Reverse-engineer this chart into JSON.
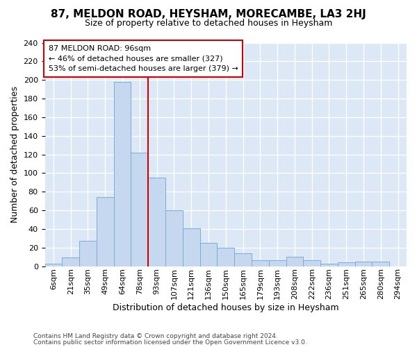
{
  "title": "87, MELDON ROAD, HEYSHAM, MORECAMBE, LA3 2HJ",
  "subtitle": "Size of property relative to detached houses in Heysham",
  "xlabel": "Distribution of detached houses by size in Heysham",
  "ylabel": "Number of detached properties",
  "footer1": "Contains HM Land Registry data © Crown copyright and database right 2024.",
  "footer2": "Contains public sector information licensed under the Open Government Licence v3.0.",
  "annotation_line1": "87 MELDON ROAD: 96sqm",
  "annotation_line2": "← 46% of detached houses are smaller (327)",
  "annotation_line3": "53% of semi-detached houses are larger (379) →",
  "bar_color": "#c5d8f0",
  "bar_edge_color": "#7aadd4",
  "highlight_color": "#cc0000",
  "background_color": "#dce8f5",
  "grid_color": "#ffffff",
  "fig_bg": "#ffffff",
  "categories": [
    "6sqm",
    "21sqm",
    "35sqm",
    "49sqm",
    "64sqm",
    "78sqm",
    "93sqm",
    "107sqm",
    "121sqm",
    "136sqm",
    "150sqm",
    "165sqm",
    "179sqm",
    "193sqm",
    "208sqm",
    "222sqm",
    "236sqm",
    "251sqm",
    "265sqm",
    "280sqm",
    "294sqm"
  ],
  "values": [
    3,
    9,
    27,
    74,
    198,
    122,
    95,
    60,
    41,
    25,
    20,
    14,
    6,
    6,
    10,
    6,
    3,
    4,
    5,
    5,
    0
  ],
  "red_line_x": 5.5,
  "ylim": [
    0,
    240
  ],
  "yticks": [
    0,
    20,
    40,
    60,
    80,
    100,
    120,
    140,
    160,
    180,
    200,
    220,
    240
  ],
  "title_fontsize": 11,
  "subtitle_fontsize": 9,
  "annotation_fontsize": 8,
  "ylabel_fontsize": 9,
  "xlabel_fontsize": 9,
  "tick_fontsize": 8,
  "footer_fontsize": 6.5
}
